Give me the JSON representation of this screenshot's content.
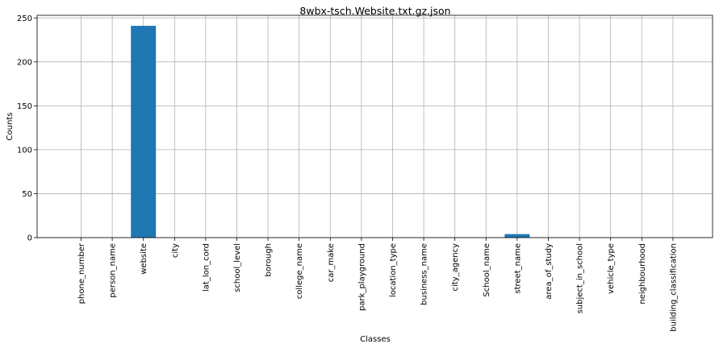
{
  "chart_data": {
    "type": "bar",
    "title": "8wbx-tsch.Website.txt.gz.json",
    "xlabel": "Classes",
    "ylabel": "Counts",
    "categories": [
      "phone_number",
      "person_name",
      "website",
      "city",
      "lat_lon_cord",
      "school_level",
      "borough",
      "college_name",
      "car_make",
      "park_playground",
      "location_type",
      "business_name",
      "city_agency",
      "School_name",
      "street_name",
      "area_of_study",
      "subject_in_school",
      "vehicle_type",
      "neighbourhood",
      "building_classification"
    ],
    "values": [
      0,
      0,
      241,
      0,
      0,
      0,
      0,
      0,
      0,
      0,
      0,
      0,
      0,
      0,
      4,
      0,
      0,
      0,
      0,
      0
    ],
    "yticks": [
      0,
      50,
      100,
      150,
      200,
      250
    ],
    "ylim": [
      0,
      253
    ],
    "grid": true,
    "bar_color": "#1f77b4"
  }
}
